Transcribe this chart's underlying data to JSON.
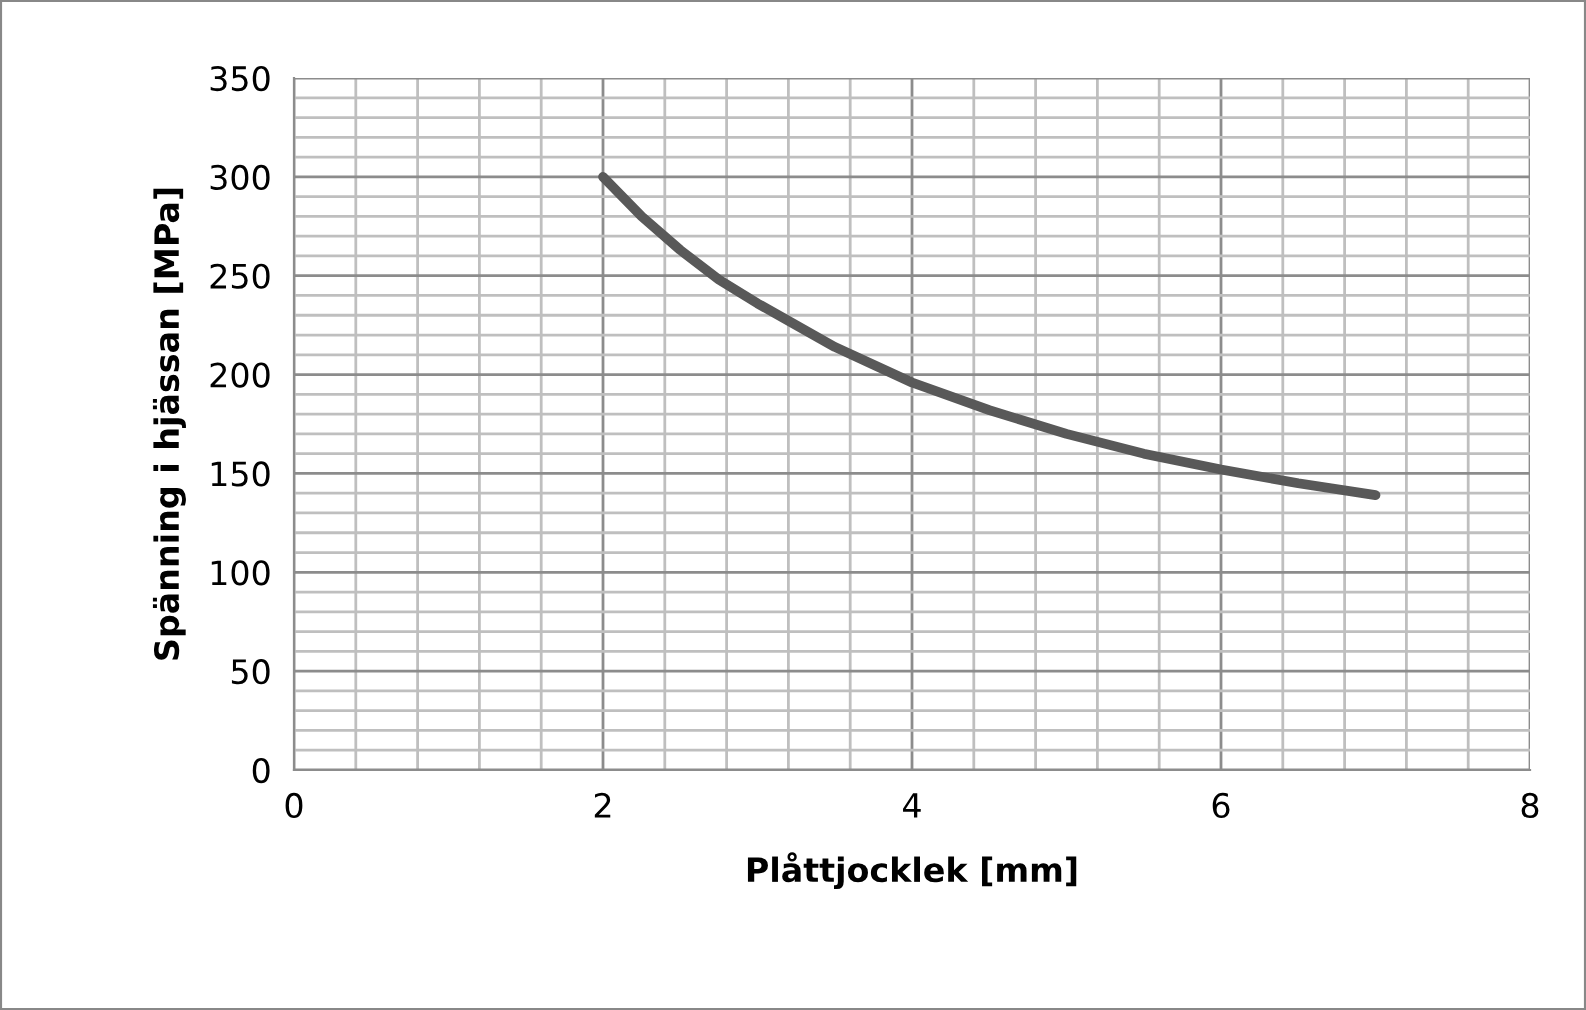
{
  "chart_data": {
    "type": "line",
    "xlabel": "Plåttjocklek [mm]",
    "ylabel": "Spänning i hjässan [MPa]",
    "series": [
      {
        "color": "#595959",
        "x": [
          2,
          2.25,
          2.5,
          2.75,
          3,
          3.5,
          4,
          4.5,
          5,
          5.5,
          6,
          6.5,
          7
        ],
        "values": [
          300,
          280,
          263,
          248,
          236,
          214,
          196,
          182,
          170,
          160,
          152,
          145,
          139
        ]
      }
    ],
    "xlim": [
      0,
      8
    ],
    "xticks": [
      0,
      2,
      4,
      6,
      8
    ],
    "ylim": [
      0,
      350
    ],
    "yticks": [
      0,
      50,
      100,
      150,
      200,
      250,
      300,
      350
    ],
    "grid": true,
    "marker": "none",
    "line_style": "solid"
  }
}
